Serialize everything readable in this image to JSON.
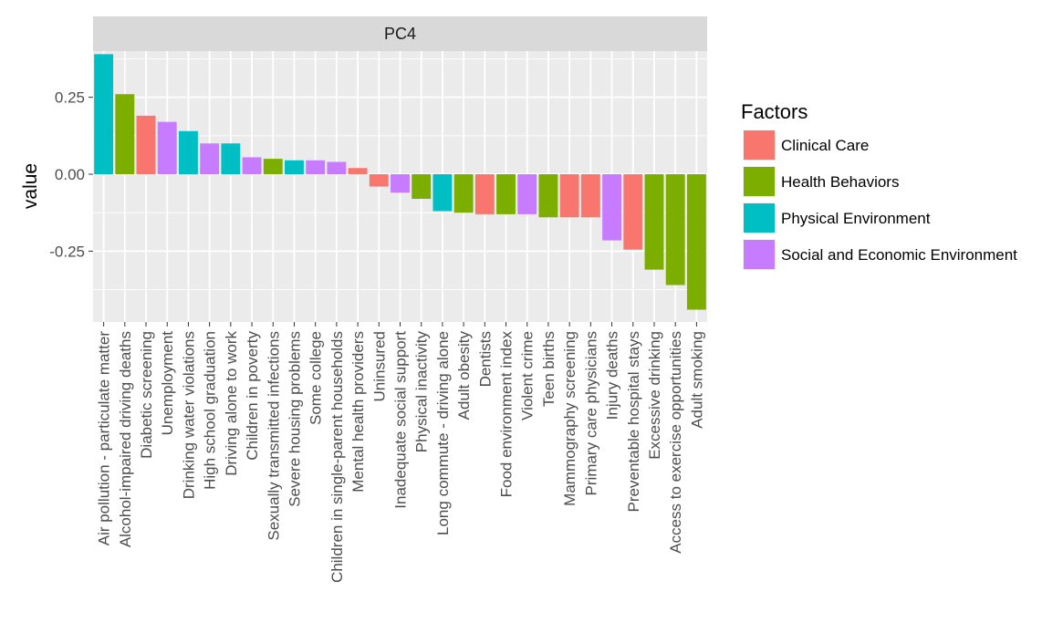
{
  "chart_data": {
    "type": "bar",
    "facet_label": "PC4",
    "ylabel": "value",
    "xlabel": "",
    "ylim": [
      -0.48,
      0.4
    ],
    "yticks": [
      {
        "value": 0.25,
        "label": "0.25"
      },
      {
        "value": 0.0,
        "label": "0.00"
      },
      {
        "value": -0.25,
        "label": "-0.25"
      }
    ],
    "grid": true,
    "legend": {
      "title": "Factors",
      "position": "right",
      "entries": [
        {
          "name": "Clinical Care",
          "color": "#F8766D"
        },
        {
          "name": "Health Behaviors",
          "color": "#7CAE00"
        },
        {
          "name": "Physical Environment",
          "color": "#00BFC4"
        },
        {
          "name": "Social and Economic Environment",
          "color": "#C77CFF"
        }
      ]
    },
    "bars": [
      {
        "label": "Air pollution - particulate matter",
        "value": 0.39,
        "factor": 2
      },
      {
        "label": "Alcohol-impaired driving deaths",
        "value": 0.26,
        "factor": 1
      },
      {
        "label": "Diabetic screening",
        "value": 0.19,
        "factor": 0
      },
      {
        "label": "Unemployment",
        "value": 0.17,
        "factor": 3
      },
      {
        "label": "Drinking water violations",
        "value": 0.14,
        "factor": 2
      },
      {
        "label": "High school graduation",
        "value": 0.1,
        "factor": 3
      },
      {
        "label": "Driving alone to work",
        "value": 0.1,
        "factor": 2
      },
      {
        "label": "Children in poverty",
        "value": 0.055,
        "factor": 3
      },
      {
        "label": "Sexually transmitted infections",
        "value": 0.05,
        "factor": 1
      },
      {
        "label": "Severe housing problems",
        "value": 0.045,
        "factor": 2
      },
      {
        "label": "Some college",
        "value": 0.045,
        "factor": 3
      },
      {
        "label": "Children in single-parent households",
        "value": 0.04,
        "factor": 3
      },
      {
        "label": "Mental health providers",
        "value": 0.02,
        "factor": 0
      },
      {
        "label": "Uninsured",
        "value": -0.04,
        "factor": 0
      },
      {
        "label": "Inadequate social support",
        "value": -0.06,
        "factor": 3
      },
      {
        "label": "Physical inactivity",
        "value": -0.08,
        "factor": 1
      },
      {
        "label": "Long commute - driving alone",
        "value": -0.12,
        "factor": 2
      },
      {
        "label": "Adult obesity",
        "value": -0.125,
        "factor": 1
      },
      {
        "label": "Dentists",
        "value": -0.13,
        "factor": 0
      },
      {
        "label": "Food environment index",
        "value": -0.13,
        "factor": 1
      },
      {
        "label": "Violent crime",
        "value": -0.13,
        "factor": 3
      },
      {
        "label": "Teen births",
        "value": -0.14,
        "factor": 1
      },
      {
        "label": "Mammography screening",
        "value": -0.14,
        "factor": 0
      },
      {
        "label": "Primary care physicians",
        "value": -0.14,
        "factor": 0
      },
      {
        "label": "Injury deaths",
        "value": -0.215,
        "factor": 3
      },
      {
        "label": "Preventable hospital stays",
        "value": -0.245,
        "factor": 0
      },
      {
        "label": "Excessive drinking",
        "value": -0.31,
        "factor": 1
      },
      {
        "label": "Access to exercise opportunities",
        "value": -0.36,
        "factor": 1
      },
      {
        "label": "Adult smoking",
        "value": -0.44,
        "factor": 1
      }
    ]
  }
}
